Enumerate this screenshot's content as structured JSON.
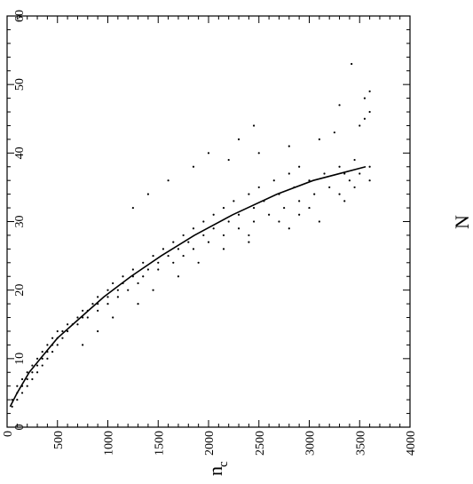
{
  "chart_data": {
    "type": "scatter",
    "title": "",
    "orientation": "rotated-90-ccw",
    "x_axis": {
      "label_main": "n",
      "label_sub": "c",
      "range": [
        0,
        60
      ],
      "major_ticks": [
        0,
        10,
        20,
        30,
        40,
        50,
        60
      ],
      "tick_labels": [
        "0",
        "10",
        "20",
        "30",
        "40",
        "50",
        "60"
      ],
      "minor_step": 2
    },
    "y_axis": {
      "label": "N",
      "range": [
        0,
        4000
      ],
      "major_ticks": [
        0,
        500,
        1000,
        1500,
        2000,
        2500,
        3000,
        3500,
        4000
      ],
      "tick_labels": [
        "0",
        "500",
        "1000",
        "1500",
        "2000",
        "2500",
        "3000",
        "3500",
        "4000"
      ],
      "minor_step": 100
    },
    "grid": false,
    "legend": "none",
    "series": [
      {
        "kind": "points",
        "marker_color": "#000000",
        "points": [
          [
            3,
            50
          ],
          [
            4,
            50
          ],
          [
            4,
            100
          ],
          [
            5,
            100
          ],
          [
            5,
            150
          ],
          [
            6,
            100
          ],
          [
            6,
            150
          ],
          [
            6,
            200
          ],
          [
            7,
            150
          ],
          [
            7,
            200
          ],
          [
            7,
            250
          ],
          [
            8,
            200
          ],
          [
            8,
            250
          ],
          [
            8,
            300
          ],
          [
            9,
            250
          ],
          [
            9,
            300
          ],
          [
            9,
            350
          ],
          [
            10,
            300
          ],
          [
            10,
            350
          ],
          [
            10,
            400
          ],
          [
            11,
            350
          ],
          [
            11,
            400
          ],
          [
            11,
            450
          ],
          [
            12,
            400
          ],
          [
            12,
            450
          ],
          [
            12,
            500
          ],
          [
            13,
            450
          ],
          [
            13,
            500
          ],
          [
            13,
            550
          ],
          [
            14,
            500
          ],
          [
            14,
            550
          ],
          [
            14,
            600
          ],
          [
            15,
            600
          ],
          [
            15,
            650
          ],
          [
            15,
            700
          ],
          [
            16,
            700
          ],
          [
            16,
            750
          ],
          [
            16,
            800
          ],
          [
            17,
            750
          ],
          [
            17,
            800
          ],
          [
            17,
            900
          ],
          [
            18,
            850
          ],
          [
            18,
            900
          ],
          [
            18,
            1000
          ],
          [
            19,
            900
          ],
          [
            19,
            1000
          ],
          [
            19,
            1100
          ],
          [
            20,
            1000
          ],
          [
            20,
            1100
          ],
          [
            20,
            1200
          ],
          [
            21,
            1050
          ],
          [
            21,
            1150
          ],
          [
            21,
            1300
          ],
          [
            22,
            1150
          ],
          [
            22,
            1250
          ],
          [
            22,
            1350
          ],
          [
            23,
            1250
          ],
          [
            23,
            1400
          ],
          [
            23,
            1500
          ],
          [
            24,
            1350
          ],
          [
            24,
            1500
          ],
          [
            24,
            1650
          ],
          [
            25,
            1450
          ],
          [
            25,
            1600
          ],
          [
            25,
            1750
          ],
          [
            26,
            1550
          ],
          [
            26,
            1700
          ],
          [
            26,
            1850
          ],
          [
            27,
            1650
          ],
          [
            27,
            1800
          ],
          [
            27,
            2000
          ],
          [
            28,
            1750
          ],
          [
            28,
            1950
          ],
          [
            28,
            2150
          ],
          [
            29,
            1850
          ],
          [
            29,
            2050
          ],
          [
            29,
            2300
          ],
          [
            30,
            1950
          ],
          [
            30,
            2200
          ],
          [
            30,
            2450
          ],
          [
            31,
            2050
          ],
          [
            31,
            2300
          ],
          [
            31,
            2600
          ],
          [
            32,
            2150
          ],
          [
            32,
            2450
          ],
          [
            32,
            2750
          ],
          [
            33,
            2250
          ],
          [
            33,
            2550
          ],
          [
            33,
            2900
          ],
          [
            34,
            2400
          ],
          [
            34,
            2700
          ],
          [
            34,
            3050
          ],
          [
            35,
            2500
          ],
          [
            35,
            2850
          ],
          [
            35,
            3200
          ],
          [
            36,
            2650
          ],
          [
            36,
            3000
          ],
          [
            36,
            3400
          ],
          [
            37,
            2800
          ],
          [
            37,
            3150
          ],
          [
            37,
            3500
          ],
          [
            38,
            2900
          ],
          [
            38,
            3300
          ],
          [
            38,
            3600
          ],
          [
            12,
            750
          ],
          [
            14,
            900
          ],
          [
            16,
            1050
          ],
          [
            18,
            1300
          ],
          [
            20,
            1450
          ],
          [
            22,
            1700
          ],
          [
            24,
            1900
          ],
          [
            26,
            2150
          ],
          [
            28,
            2400
          ],
          [
            30,
            2700
          ],
          [
            32,
            3000
          ],
          [
            34,
            3300
          ],
          [
            36,
            3600
          ],
          [
            38,
            1850
          ],
          [
            39,
            2200
          ],
          [
            40,
            2500
          ],
          [
            41,
            2800
          ],
          [
            42,
            3100
          ],
          [
            43,
            3250
          ],
          [
            44,
            3500
          ],
          [
            45,
            3550
          ],
          [
            46,
            3600
          ],
          [
            47,
            3300
          ],
          [
            48,
            3550
          ],
          [
            49,
            3600
          ],
          [
            53,
            3420
          ],
          [
            42,
            2300
          ],
          [
            44,
            2450
          ],
          [
            40,
            2000
          ],
          [
            36,
            1600
          ],
          [
            34,
            1400
          ],
          [
            32,
            1250
          ],
          [
            27,
            2400
          ],
          [
            31,
            2900
          ],
          [
            35,
            3450
          ],
          [
            33,
            3350
          ],
          [
            30,
            3100
          ],
          [
            29,
            2800
          ],
          [
            37,
            3350
          ],
          [
            39,
            3450
          ]
        ]
      },
      {
        "kind": "fit-curve",
        "points": [
          [
            3,
            30
          ],
          [
            5,
            100
          ],
          [
            8,
            220
          ],
          [
            10,
            330
          ],
          [
            13,
            500
          ],
          [
            16,
            730
          ],
          [
            19,
            960
          ],
          [
            22,
            1230
          ],
          [
            25,
            1530
          ],
          [
            28,
            1860
          ],
          [
            31,
            2240
          ],
          [
            34,
            2680
          ],
          [
            36,
            3040
          ],
          [
            38,
            3560
          ]
        ]
      }
    ]
  }
}
